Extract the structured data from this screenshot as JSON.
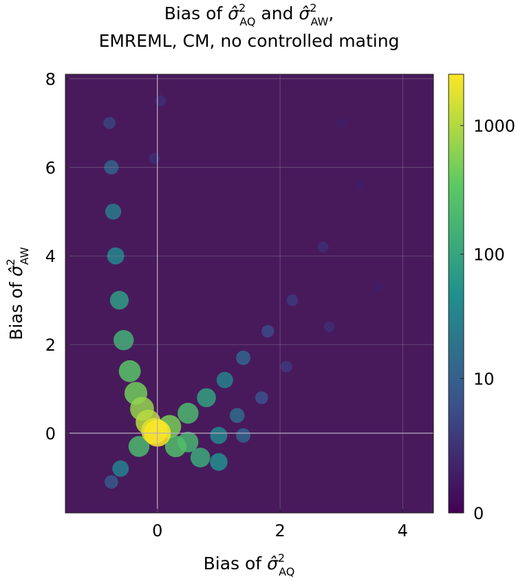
{
  "chart_data": {
    "type": "heatmap",
    "title": {
      "line1_prefix": "Bias of ",
      "sym_q": "σ̂",
      "sup_q": "2",
      "sub_q": "AQ",
      "joiner": " and ",
      "sym_w": "σ̂",
      "sup_w": "2",
      "sub_w": "AW",
      "line1_suffix": ",",
      "line2": "EMREML, CM, no controlled mating"
    },
    "xlabel": {
      "prefix": "Bias of ",
      "sym": "σ̂",
      "sup": "2",
      "sub": "AQ"
    },
    "ylabel": {
      "prefix": "Bias of ",
      "sym": "σ̂",
      "sup": "2",
      "sub": "AW"
    },
    "xlim": [
      -1.5,
      4.5
    ],
    "ylim": [
      -1.8,
      8.1
    ],
    "x_ticks": [
      0,
      2,
      4
    ],
    "x_tick_labels": [
      "0",
      "2",
      "4"
    ],
    "y_ticks": [
      0,
      2,
      4,
      6,
      8
    ],
    "y_tick_labels": [
      "0",
      "2",
      "4",
      "6",
      "8"
    ],
    "grid": true,
    "reference_lines": {
      "x": 0,
      "y": 0
    },
    "colorbar": {
      "scale": "log",
      "ticks": [
        0,
        10,
        100,
        1000
      ],
      "tick_labels": [
        "0",
        "10",
        "100",
        "1000"
      ],
      "max": 2500,
      "colormap": [
        "#440154",
        "#3b528b",
        "#21908d",
        "#5dc963",
        "#fde725"
      ]
    },
    "background_color": "#481a5c",
    "density_clusters": [
      {
        "x": 0.0,
        "y": 0.0,
        "count": 2500
      },
      {
        "x": -0.05,
        "y": 0.05,
        "count": 1800
      },
      {
        "x": -0.15,
        "y": 0.25,
        "count": 1100
      },
      {
        "x": -0.25,
        "y": 0.55,
        "count": 700
      },
      {
        "x": -0.35,
        "y": 0.9,
        "count": 450
      },
      {
        "x": -0.45,
        "y": 1.4,
        "count": 300
      },
      {
        "x": -0.55,
        "y": 2.1,
        "count": 150
      },
      {
        "x": -0.62,
        "y": 3.0,
        "count": 80
      },
      {
        "x": -0.68,
        "y": 4.0,
        "count": 40
      },
      {
        "x": -0.72,
        "y": 5.0,
        "count": 25
      },
      {
        "x": -0.75,
        "y": 6.0,
        "count": 12
      },
      {
        "x": -0.78,
        "y": 7.0,
        "count": 4
      },
      {
        "x": 0.2,
        "y": 0.15,
        "count": 500
      },
      {
        "x": 0.5,
        "y": 0.45,
        "count": 200
      },
      {
        "x": 0.8,
        "y": 0.8,
        "count": 90
      },
      {
        "x": 1.1,
        "y": 1.2,
        "count": 30
      },
      {
        "x": 1.4,
        "y": 1.7,
        "count": 12
      },
      {
        "x": 1.8,
        "y": 2.3,
        "count": 5
      },
      {
        "x": 2.2,
        "y": 3.0,
        "count": 3
      },
      {
        "x": 2.7,
        "y": 4.2,
        "count": 2
      },
      {
        "x": 0.3,
        "y": -0.3,
        "count": 250
      },
      {
        "x": 0.7,
        "y": -0.55,
        "count": 120
      },
      {
        "x": 1.0,
        "y": -0.65,
        "count": 50
      },
      {
        "x": 0.5,
        "y": -0.2,
        "count": 180
      },
      {
        "x": 1.0,
        "y": -0.05,
        "count": 40
      },
      {
        "x": 1.4,
        "y": -0.05,
        "count": 12
      },
      {
        "x": -0.3,
        "y": -0.3,
        "count": 200
      },
      {
        "x": -0.6,
        "y": -0.8,
        "count": 30
      },
      {
        "x": -0.75,
        "y": -1.1,
        "count": 8
      },
      {
        "x": 1.3,
        "y": 0.4,
        "count": 15
      },
      {
        "x": 1.7,
        "y": 0.8,
        "count": 6
      },
      {
        "x": 2.1,
        "y": 1.5,
        "count": 3
      },
      {
        "x": 2.8,
        "y": 2.4,
        "count": 2
      },
      {
        "x": 3.0,
        "y": 7.0,
        "count": 1
      },
      {
        "x": 3.3,
        "y": 5.6,
        "count": 1
      },
      {
        "x": 3.6,
        "y": 3.3,
        "count": 1
      },
      {
        "x": 0.05,
        "y": 7.5,
        "count": 2
      },
      {
        "x": -0.05,
        "y": 6.2,
        "count": 2
      }
    ]
  }
}
